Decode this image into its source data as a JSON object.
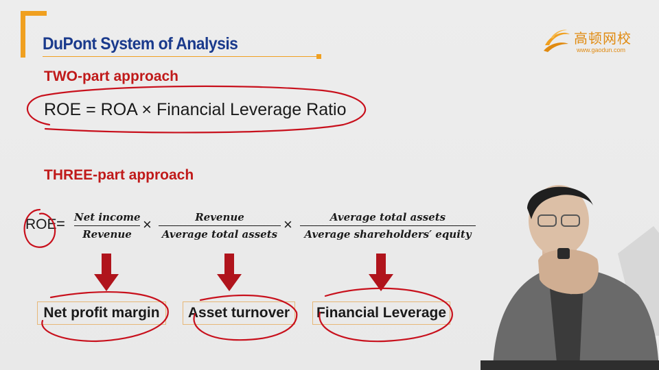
{
  "header": {
    "title": "DuPont System of Analysis"
  },
  "logo": {
    "name": "高顿网校",
    "url": "www.gaodun.com"
  },
  "two_part": {
    "heading": "TWO-part approach",
    "formula": "ROE = ROA × Financial Leverage Ratio"
  },
  "three_part": {
    "heading": "THREE-part approach",
    "lhs": "ROE",
    "equals": "=",
    "times": "×",
    "fractions": [
      {
        "numerator": "Net income",
        "denominator": "Revenue"
      },
      {
        "numerator": "Revenue",
        "denominator": "Average total assets"
      },
      {
        "numerator": "Average total assets",
        "denominator": "Average shareholders′ equity"
      }
    ],
    "labels": [
      "Net profit margin",
      "Asset turnover",
      "Financial Leverage"
    ]
  },
  "colors": {
    "title": "#1a3a8c",
    "accent": "#f0a020",
    "heading": "#c01a1a",
    "arrow": "#b0141c",
    "ink": "#c8101c"
  }
}
